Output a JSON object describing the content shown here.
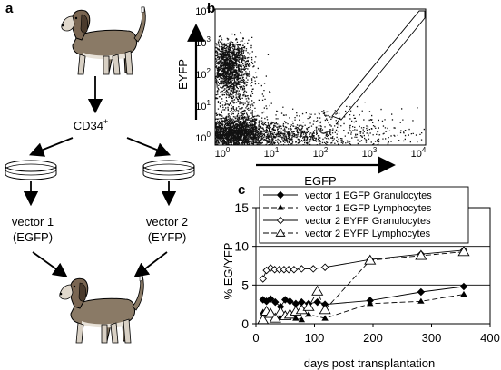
{
  "panels": {
    "a": {
      "letter": "a",
      "cell_label_base": "CD34",
      "cell_label_sup": "+",
      "left_vector_line1": "vector 1",
      "left_vector_line2": "(EGFP)",
      "right_vector_line1": "vector 2",
      "right_vector_line2": "(EYFP)"
    },
    "b": {
      "letter": "b",
      "xlabel": "EGFP",
      "ylabel": "EYFP",
      "ticks": [
        {
          "base": "10",
          "exp": "0"
        },
        {
          "base": "10",
          "exp": "1"
        },
        {
          "base": "10",
          "exp": "2"
        },
        {
          "base": "10",
          "exp": "3"
        },
        {
          "base": "10",
          "exp": "4"
        }
      ]
    },
    "c": {
      "letter": "c"
    }
  },
  "chart_data": {
    "type": "line",
    "xlabel": "days post transplantation",
    "ylabel": "% EG/YFP",
    "xlim": [
      0,
      400
    ],
    "ylim": [
      0,
      15
    ],
    "xticks": [
      0,
      100,
      200,
      300,
      400
    ],
    "yticks": [
      0,
      5,
      10,
      15
    ],
    "legend": "top",
    "series": [
      {
        "name": "vector 1 EGFP Granulocytes",
        "marker": "diamond-filled",
        "dash": "solid",
        "points": [
          [
            12,
            3.1
          ],
          [
            18,
            2.9
          ],
          [
            25,
            3.2
          ],
          [
            33,
            2.8
          ],
          [
            42,
            2.2
          ],
          [
            50,
            3.1
          ],
          [
            58,
            2.9
          ],
          [
            68,
            2.6
          ],
          [
            78,
            2.8
          ],
          [
            90,
            2.6
          ],
          [
            105,
            2.8
          ],
          [
            118,
            2.5
          ],
          [
            195,
            3.0
          ],
          [
            282,
            4.1
          ],
          [
            355,
            4.8
          ]
        ]
      },
      {
        "name": "vector 1 EGFP Lymphocytes",
        "marker": "triangle-filled",
        "dash": "dashed",
        "points": [
          [
            12,
            1.5
          ],
          [
            18,
            1.4
          ],
          [
            25,
            1.6
          ],
          [
            33,
            0.6
          ],
          [
            42,
            0.9
          ],
          [
            55,
            0.8
          ],
          [
            68,
            0.7
          ],
          [
            78,
            0.5
          ],
          [
            90,
            1.2
          ],
          [
            118,
            0.7
          ],
          [
            195,
            2.6
          ],
          [
            282,
            2.9
          ],
          [
            355,
            3.8
          ]
        ]
      },
      {
        "name": "vector 2 EYFP Granulocytes",
        "marker": "diamond-open",
        "dash": "solid",
        "points": [
          [
            12,
            5.8
          ],
          [
            18,
            6.9
          ],
          [
            25,
            7.2
          ],
          [
            32,
            7.0
          ],
          [
            40,
            7.0
          ],
          [
            48,
            7.0
          ],
          [
            56,
            7.0
          ],
          [
            65,
            7.0
          ],
          [
            78,
            7.1
          ],
          [
            98,
            7.1
          ],
          [
            118,
            7.3
          ],
          [
            195,
            8.3
          ],
          [
            282,
            9.0
          ],
          [
            355,
            9.5
          ]
        ]
      },
      {
        "name": "vector 2 EYFP Lymphocytes",
        "marker": "triangle-open",
        "dash": "dashed",
        "points": [
          [
            12,
            0.5
          ],
          [
            18,
            1.6
          ],
          [
            25,
            1.3
          ],
          [
            33,
            0.7
          ],
          [
            42,
            1.5
          ],
          [
            50,
            1.0
          ],
          [
            58,
            1.2
          ],
          [
            68,
            1.6
          ],
          [
            78,
            1.8
          ],
          [
            90,
            2.2
          ],
          [
            105,
            4.2
          ],
          [
            118,
            1.8
          ],
          [
            195,
            8.2
          ],
          [
            282,
            8.8
          ],
          [
            355,
            9.3
          ]
        ]
      }
    ]
  }
}
